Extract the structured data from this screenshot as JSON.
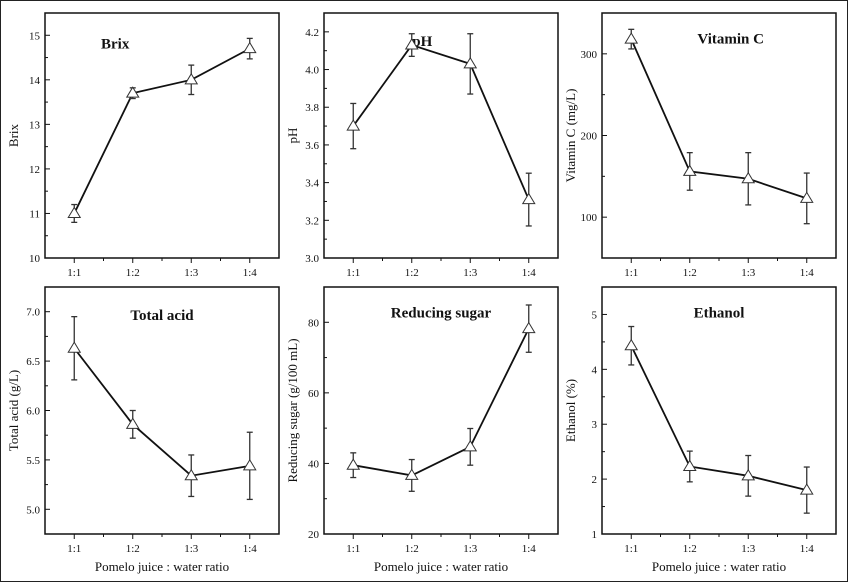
{
  "chart_data": [
    {
      "type": "line",
      "title": "Brix",
      "ylabel": "Brix",
      "xlabel": "",
      "categories": [
        "1:1",
        "1:2",
        "1:3",
        "1:4"
      ],
      "values": [
        11.0,
        13.7,
        14.0,
        14.7
      ],
      "errors": [
        0.2,
        0.12,
        0.33,
        0.23
      ],
      "ylim": [
        10,
        15.5
      ],
      "yticks": [
        10,
        11,
        12,
        13,
        14,
        15
      ],
      "ytick_labels": [
        "10",
        "11",
        "12",
        "13",
        "14",
        "15"
      ],
      "marker": "open-triangle"
    },
    {
      "type": "line",
      "title": "pH",
      "ylabel": "pH",
      "xlabel": "",
      "categories": [
        "1:1",
        "1:2",
        "1:3",
        "1:4"
      ],
      "values": [
        3.7,
        4.13,
        4.03,
        3.31
      ],
      "errors": [
        0.12,
        0.06,
        0.16,
        0.14
      ],
      "ylim": [
        3.0,
        4.3
      ],
      "yticks": [
        3.0,
        3.2,
        3.4,
        3.6,
        3.8,
        4.0,
        4.2
      ],
      "ytick_labels": [
        "3.0",
        "3.2",
        "3.4",
        "3.6",
        "3.8",
        "4.0",
        "4.2"
      ],
      "marker": "open-triangle"
    },
    {
      "type": "line",
      "title": "Vitamin C",
      "ylabel": "Vitamin C (mg/L)",
      "xlabel": "",
      "categories": [
        "1:1",
        "1:2",
        "1:3",
        "1:4"
      ],
      "values": [
        318,
        156,
        147,
        123
      ],
      "errors": [
        12,
        23,
        32,
        31
      ],
      "ylim": [
        50,
        350
      ],
      "yticks": [
        100,
        200,
        300
      ],
      "ytick_labels": [
        "100",
        "200",
        "300"
      ],
      "marker": "open-triangle"
    },
    {
      "type": "line",
      "title": "Total acid",
      "ylabel": "Total acid (g/L)",
      "xlabel": "Pomelo juice : water ratio",
      "categories": [
        "1:1",
        "1:2",
        "1:3",
        "1:4"
      ],
      "values": [
        6.63,
        5.86,
        5.34,
        5.44
      ],
      "errors": [
        0.32,
        0.14,
        0.21,
        0.34
      ],
      "ylim": [
        4.75,
        7.25
      ],
      "yticks": [
        5.0,
        5.5,
        6.0,
        6.5,
        7.0
      ],
      "ytick_labels": [
        "5.0",
        "5.5",
        "6.0",
        "6.5",
        "7.0"
      ],
      "marker": "open-triangle"
    },
    {
      "type": "line",
      "title": "Reducing sugar",
      "ylabel": "Reducing sugar (g/100 mL)",
      "xlabel": "Pomelo juice : water ratio",
      "categories": [
        "1:1",
        "1:2",
        "1:3",
        "1:4"
      ],
      "values": [
        39.5,
        36.6,
        44.7,
        78.2
      ],
      "errors": [
        3.5,
        4.5,
        5.2,
        6.7
      ],
      "ylim": [
        20,
        90
      ],
      "yticks": [
        20,
        40,
        60,
        80
      ],
      "ytick_labels": [
        "20",
        "40",
        "60",
        "80"
      ],
      "marker": "open-triangle"
    },
    {
      "type": "line",
      "title": "Ethanol",
      "ylabel": "Ethanol (%)",
      "xlabel": "Pomelo juice : water ratio",
      "categories": [
        "1:1",
        "1:2",
        "1:3",
        "1:4"
      ],
      "values": [
        4.43,
        2.23,
        2.06,
        1.8
      ],
      "errors": [
        0.35,
        0.28,
        0.37,
        0.42
      ],
      "ylim": [
        1,
        5.5
      ],
      "yticks": [
        1,
        2,
        3,
        4,
        5
      ],
      "ytick_labels": [
        "1",
        "2",
        "3",
        "4",
        "5"
      ],
      "marker": "open-triangle"
    }
  ]
}
